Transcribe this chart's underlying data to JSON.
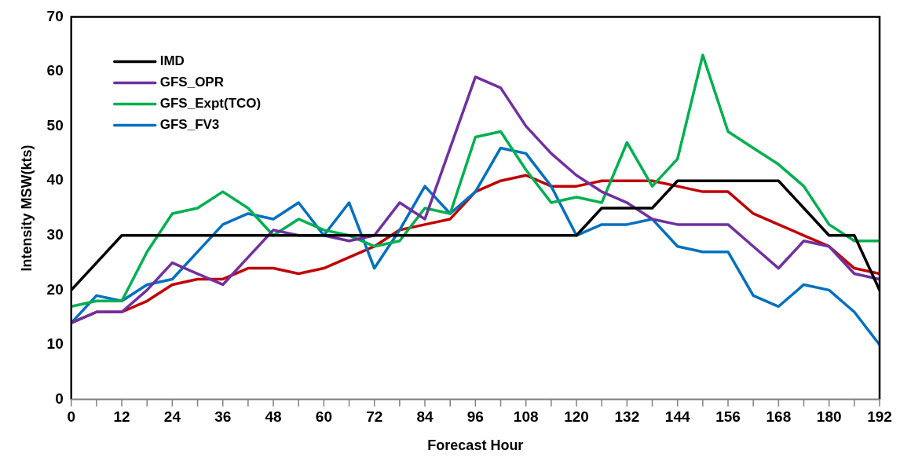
{
  "chart_data": {
    "type": "line",
    "xlabel": "Forecast Hour",
    "ylabel": "Intensity MSW(kts)",
    "x": [
      0,
      6,
      12,
      18,
      24,
      30,
      36,
      42,
      48,
      54,
      60,
      66,
      72,
      78,
      84,
      90,
      96,
      102,
      108,
      114,
      120,
      126,
      132,
      138,
      144,
      150,
      156,
      162,
      168,
      174,
      180,
      186,
      192
    ],
    "series": [
      {
        "name": "IMD",
        "color": "#000000",
        "values": [
          20,
          25,
          30,
          30,
          30,
          30,
          30,
          30,
          30,
          30,
          30,
          30,
          30,
          30,
          30,
          30,
          30,
          30,
          30,
          30,
          30,
          35,
          35,
          35,
          40,
          40,
          40,
          40,
          40,
          35,
          30,
          30,
          20
        ]
      },
      {
        "name": "GFS_OPR",
        "color": "#7030a0",
        "values": [
          14,
          16,
          16,
          20,
          25,
          23,
          21,
          26,
          31,
          30,
          30,
          29,
          30,
          36,
          33,
          46,
          59,
          57,
          50,
          45,
          41,
          38,
          36,
          33,
          32,
          32,
          32,
          28,
          24,
          29,
          28,
          23,
          22
        ]
      },
      {
        "name": "GFS_Expt(TCO)",
        "color": "#00b050",
        "values": [
          17,
          18,
          18,
          27,
          34,
          35,
          38,
          35,
          30,
          33,
          31,
          30,
          28,
          29,
          35,
          34,
          48,
          49,
          42,
          36,
          37,
          36,
          47,
          39,
          44,
          63,
          49,
          46,
          43,
          39,
          32,
          29,
          29
        ]
      },
      {
        "name": "GFS_FV3",
        "color": "#0070c0",
        "values": [
          14,
          19,
          18,
          21,
          22,
          27,
          32,
          34,
          33,
          36,
          30,
          36,
          24,
          31,
          39,
          34,
          38,
          46,
          45,
          39,
          30,
          32,
          32,
          33,
          28,
          27,
          27,
          19,
          17,
          21,
          20,
          16,
          10
        ]
      },
      {
        "color": "#c00000",
        "values": [
          14,
          16,
          16,
          18,
          21,
          22,
          22,
          24,
          24,
          23,
          24,
          26,
          28,
          31,
          32,
          33,
          38,
          40,
          41,
          39,
          39,
          40,
          40,
          40,
          39,
          38,
          38,
          34,
          32,
          30,
          28,
          24,
          23
        ]
      }
    ],
    "xlim": [
      0,
      192
    ],
    "xticks": [
      0,
      {
        "value": 6,
        "label": null
      },
      12,
      {
        "value": 18,
        "label": null
      },
      24,
      {
        "value": 30,
        "label": null
      },
      36,
      {
        "value": 42,
        "label": null
      },
      48,
      {
        "value": 54,
        "label": null
      },
      60,
      {
        "value": 66,
        "label": null
      },
      72,
      {
        "value": 78,
        "label": null
      },
      84,
      {
        "value": 90,
        "label": null
      },
      96,
      {
        "value": 102,
        "label": null
      },
      108,
      {
        "value": 114,
        "label": null
      },
      120,
      {
        "value": 126,
        "label": null
      },
      132,
      {
        "value": 138,
        "label": null
      },
      144,
      {
        "value": 150,
        "label": null
      },
      156,
      {
        "value": 162,
        "label": null
      },
      168,
      {
        "value": 174,
        "label": null
      },
      180,
      {
        "value": 186,
        "label": null
      },
      192
    ],
    "ylim": [
      0,
      70
    ],
    "yticks": [
      0,
      10,
      20,
      30,
      40,
      50,
      60,
      70
    ],
    "grid": false,
    "legend": "top left",
    "marker": "none",
    "line_style": "solid"
  }
}
